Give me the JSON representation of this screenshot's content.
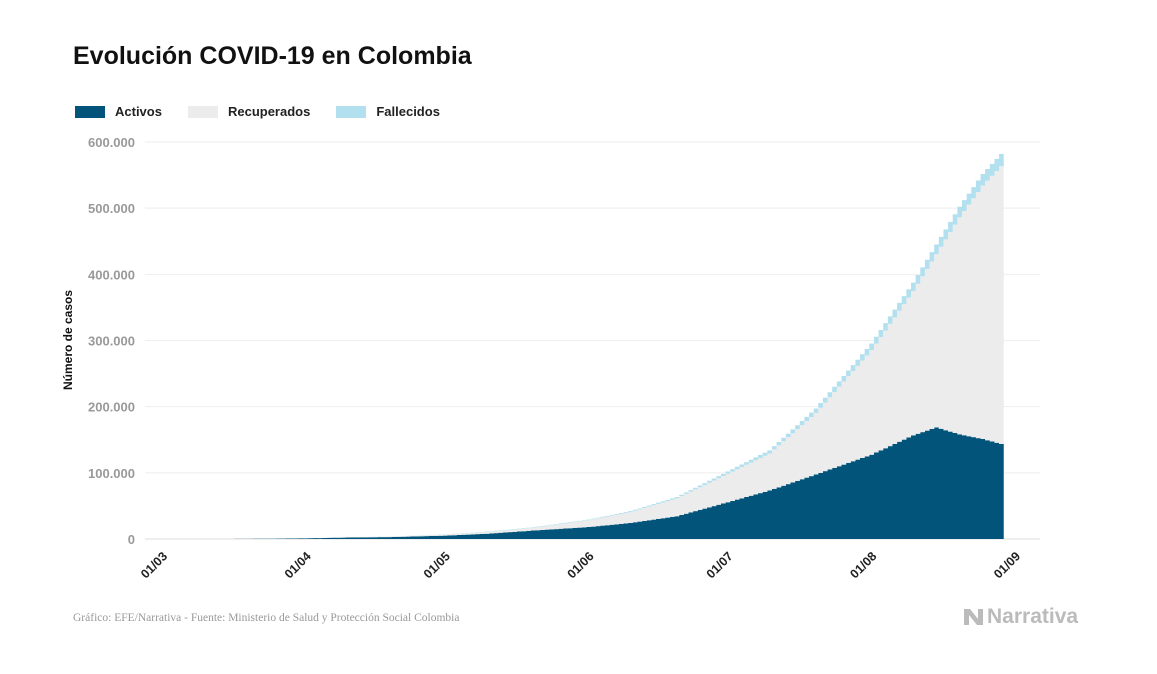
{
  "title": "Evolución COVID-19 en Colombia",
  "source": "Gráfico: EFE/Narrativa - Fuente: Ministerio de Salud y Protección Social Colombia",
  "logo_text": "Narrativa",
  "chart_data": {
    "type": "area",
    "stacked": true,
    "step": true,
    "title": "Evolución COVID-19 en Colombia",
    "ylabel": "Número de casos",
    "xlabel": "",
    "ylim": [
      0,
      600000
    ],
    "yticks": [
      0,
      100000,
      200000,
      300000,
      400000,
      500000,
      600000
    ],
    "ytick_labels": [
      "0",
      "100.000",
      "200.000",
      "300.000",
      "400.000",
      "500.000",
      "600.000"
    ],
    "xlim": [
      "2020-03-01",
      "2020-09-01"
    ],
    "xticks": [
      "2020-03-01",
      "2020-04-01",
      "2020-05-01",
      "2020-06-01",
      "2020-07-01",
      "2020-08-01",
      "2020-09-01"
    ],
    "xtick_labels": [
      "01/03",
      "01/04",
      "01/05",
      "01/06",
      "01/07",
      "01/08",
      "01/09"
    ],
    "grid": "horizontal",
    "legend_position": "top-left",
    "x": [
      "2020-03-06",
      "2020-03-15",
      "2020-03-25",
      "2020-04-01",
      "2020-04-10",
      "2020-04-20",
      "2020-05-01",
      "2020-05-10",
      "2020-05-20",
      "2020-06-01",
      "2020-06-10",
      "2020-06-20",
      "2020-07-01",
      "2020-07-10",
      "2020-07-20",
      "2020-08-01",
      "2020-08-10",
      "2020-08-15",
      "2020-08-20",
      "2020-08-25",
      "2020-08-29"
    ],
    "series": [
      {
        "name": "Activos",
        "color": "#02547b",
        "values": [
          1,
          33,
          458,
          993,
          2196,
          2984,
          5141,
          7922,
          12756,
          18086,
          24206,
          34409,
          55539,
          73259,
          97542,
          127403,
          156639,
          168619,
          158199,
          151076,
          143555
        ]
      },
      {
        "name": "Recuperados",
        "color": "#ececec",
        "values": [
          0,
          1,
          8,
          55,
          197,
          804,
          1551,
          2678,
          4318,
          10358,
          16500,
          27000,
          43000,
          56000,
          93000,
          158000,
          218000,
          262000,
          328000,
          383000,
          420000
        ]
      },
      {
        "name": "Fallecidos",
        "color": "#b3e0ef",
        "values": [
          0,
          0,
          4,
          17,
          80,
          189,
          314,
          463,
          613,
          939,
          1372,
          2045,
          3470,
          4714,
          6736,
          10105,
          12842,
          14492,
          15979,
          17612,
          18467
        ]
      }
    ]
  }
}
